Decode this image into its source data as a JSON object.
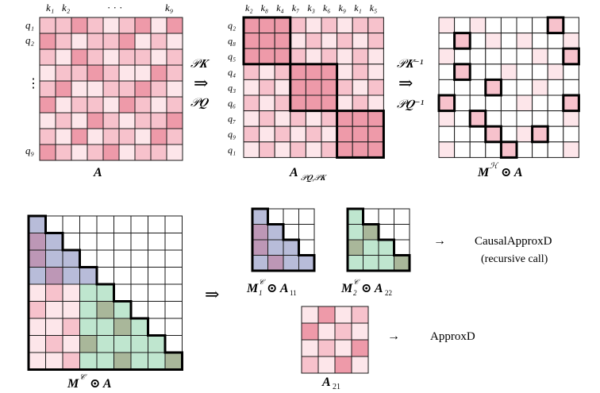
{
  "colors": {
    "grid": "#1a1a1a",
    "pink_light": "#fde6ea",
    "pink_mid": "#f7c2cc",
    "pink_dark": "#ee9aa9",
    "blue": "#b8bcd9",
    "blue_dark": "#bd97b6",
    "green": "#bfe6cf",
    "green_dark": "#a9b79a",
    "white": "#ffffff"
  },
  "matrix_A": {
    "label": "A",
    "row_labels": [
      "q₁",
      "q₂",
      "⋮",
      "q₉"
    ],
    "col_labels": [
      "k₁",
      "k₂",
      "· · ·",
      "k₉"
    ],
    "cells": [
      [
        1,
        1,
        2,
        1,
        0,
        1,
        2,
        0,
        2
      ],
      [
        2,
        1,
        0,
        1,
        1,
        2,
        0,
        1,
        0
      ],
      [
        1,
        0,
        2,
        1,
        0,
        1,
        1,
        0,
        1
      ],
      [
        0,
        1,
        1,
        2,
        1,
        0,
        0,
        2,
        1
      ],
      [
        1,
        2,
        0,
        0,
        1,
        1,
        2,
        1,
        0
      ],
      [
        2,
        0,
        1,
        1,
        0,
        2,
        1,
        0,
        1
      ],
      [
        0,
        1,
        0,
        2,
        1,
        0,
        1,
        1,
        2
      ],
      [
        1,
        0,
        2,
        0,
        1,
        1,
        0,
        2,
        1
      ],
      [
        2,
        1,
        0,
        1,
        2,
        0,
        1,
        1,
        0
      ]
    ]
  },
  "matrix_permuted": {
    "label": "A",
    "subscript": "𝒫𝑸,𝒫𝑲",
    "row_labels": [
      "q₂",
      "q₈",
      "q₅",
      "q₄",
      "q₃",
      "q₆",
      "q₇",
      "q₉",
      "q₁"
    ],
    "col_labels": [
      "k₂",
      "k₈",
      "k₄",
      "k₇",
      "k₃",
      "k₆",
      "k₉",
      "k₁",
      "k₅"
    ],
    "cells": [
      [
        2,
        2,
        2,
        1,
        0,
        1,
        0,
        1,
        1
      ],
      [
        2,
        2,
        2,
        0,
        1,
        0,
        1,
        0,
        1
      ],
      [
        2,
        2,
        2,
        1,
        0,
        1,
        0,
        1,
        0
      ],
      [
        1,
        0,
        1,
        2,
        2,
        2,
        0,
        1,
        0
      ],
      [
        0,
        1,
        0,
        2,
        2,
        2,
        1,
        0,
        1
      ],
      [
        1,
        0,
        1,
        2,
        2,
        2,
        0,
        1,
        0
      ],
      [
        0,
        1,
        0,
        1,
        0,
        1,
        2,
        2,
        2
      ],
      [
        1,
        0,
        1,
        0,
        1,
        0,
        2,
        2,
        2
      ],
      [
        0,
        1,
        0,
        1,
        0,
        1,
        2,
        2,
        2
      ]
    ]
  },
  "perm_forward": {
    "top": "𝒫𝑲",
    "arrow": "⇒",
    "bottom": "𝒫𝑸"
  },
  "perm_inverse": {
    "top": "𝒫𝑲⁻¹",
    "arrow": "⇒",
    "bottom": "𝒫𝑸⁻¹"
  },
  "matrix_MH": {
    "label": "M",
    "sup": "ℋ",
    "op": "⊙ A",
    "cells": [
      [
        1,
        0,
        1,
        0,
        0,
        0,
        0,
        2,
        0
      ],
      [
        0,
        2,
        0,
        1,
        0,
        1,
        0,
        0,
        1
      ],
      [
        1,
        0,
        0,
        0,
        0,
        0,
        1,
        0,
        2
      ],
      [
        0,
        2,
        0,
        0,
        1,
        0,
        0,
        1,
        0
      ],
      [
        0,
        0,
        0,
        2,
        0,
        0,
        1,
        0,
        0
      ],
      [
        2,
        0,
        0,
        0,
        0,
        1,
        0,
        0,
        2
      ],
      [
        1,
        0,
        2,
        0,
        0,
        0,
        0,
        0,
        1
      ],
      [
        0,
        0,
        0,
        2,
        0,
        1,
        2,
        0,
        0
      ],
      [
        1,
        0,
        0,
        0,
        2,
        0,
        0,
        0,
        1
      ]
    ]
  },
  "matrix_MC": {
    "label": "M",
    "sup": "𝒞",
    "op": "⊙ A",
    "cells": [
      [
        "b",
        "w",
        "w",
        "w",
        "w",
        "w",
        "w",
        "w",
        "w"
      ],
      [
        "B",
        "b",
        "w",
        "w",
        "w",
        "w",
        "w",
        "w",
        "w"
      ],
      [
        "B",
        "b",
        "b",
        "w",
        "w",
        "w",
        "w",
        "w",
        "w"
      ],
      [
        "b",
        "B",
        "b",
        "b",
        "w",
        "w",
        "w",
        "w",
        "w"
      ],
      [
        "p",
        "P",
        "p",
        "g",
        "g",
        "w",
        "w",
        "w",
        "w"
      ],
      [
        "P",
        "p",
        "p",
        "g",
        "G",
        "g",
        "w",
        "w",
        "w"
      ],
      [
        "p",
        "p",
        "P",
        "g",
        "g",
        "G",
        "g",
        "w",
        "w"
      ],
      [
        "p",
        "P",
        "p",
        "G",
        "g",
        "g",
        "g",
        "g",
        "w"
      ],
      [
        "p",
        "p",
        "P",
        "g",
        "g",
        "G",
        "g",
        "g",
        "G"
      ]
    ]
  },
  "matrix_M1": {
    "label": "M",
    "sup": "𝒞",
    "sub": "1",
    "op": "⊙ A",
    "op_sub": "11",
    "cells": [
      [
        "b",
        "w",
        "w",
        "w"
      ],
      [
        "B",
        "b",
        "w",
        "w"
      ],
      [
        "B",
        "b",
        "b",
        "w"
      ],
      [
        "b",
        "B",
        "b",
        "b"
      ]
    ]
  },
  "matrix_M2": {
    "label": "M",
    "sup": "𝒞",
    "sub": "2",
    "op": "⊙ A",
    "op_sub": "22",
    "cells": [
      [
        "g",
        "w",
        "w",
        "w"
      ],
      [
        "g",
        "G",
        "w",
        "w"
      ],
      [
        "G",
        "g",
        "g",
        "w"
      ],
      [
        "g",
        "g",
        "g",
        "G"
      ]
    ]
  },
  "matrix_A21": {
    "label": "A",
    "sub": "21",
    "cells": [
      [
        0,
        2,
        0,
        1
      ],
      [
        2,
        0,
        1,
        0
      ],
      [
        0,
        1,
        0,
        2
      ],
      [
        1,
        0,
        2,
        0
      ]
    ]
  },
  "split_arrow": "⇒",
  "causal_arrow": "→",
  "causal_text": "CausalApproxD",
  "causal_note": "(recursive call)",
  "approx_arrow": "→",
  "approx_text": "ApproxD"
}
